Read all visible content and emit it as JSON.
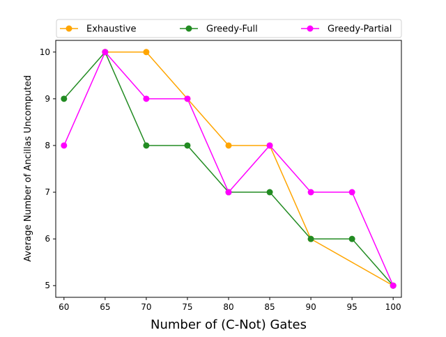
{
  "chart_data": {
    "type": "line",
    "title": "",
    "xlabel": "Number of (C-Not) Gates",
    "ylabel": "Average Number of Ancillas Uncomputed",
    "x": [
      60,
      65,
      70,
      75,
      80,
      85,
      90,
      95,
      100
    ],
    "x_ticks": [
      "60",
      "65",
      "70",
      "75",
      "80",
      "85",
      "90",
      "95",
      "100"
    ],
    "y_ticks": [
      "5",
      "6",
      "7",
      "8",
      "9",
      "10"
    ],
    "xlim": [
      59,
      101
    ],
    "ylim": [
      4.75,
      10.25
    ],
    "grid": false,
    "legend_position": "top, above plot",
    "series": [
      {
        "name": "Exhaustive",
        "color": "#ffa500",
        "values": [
          null,
          10,
          10,
          9,
          8,
          8,
          6,
          null,
          5
        ]
      },
      {
        "name": "Greedy-Full",
        "color": "#228b22",
        "values": [
          9,
          10,
          8,
          8,
          7,
          7,
          6,
          6,
          5
        ]
      },
      {
        "name": "Greedy-Partial",
        "color": "#ff00ff",
        "values": [
          8,
          10,
          9,
          9,
          7,
          8,
          7,
          7,
          5
        ]
      }
    ]
  }
}
